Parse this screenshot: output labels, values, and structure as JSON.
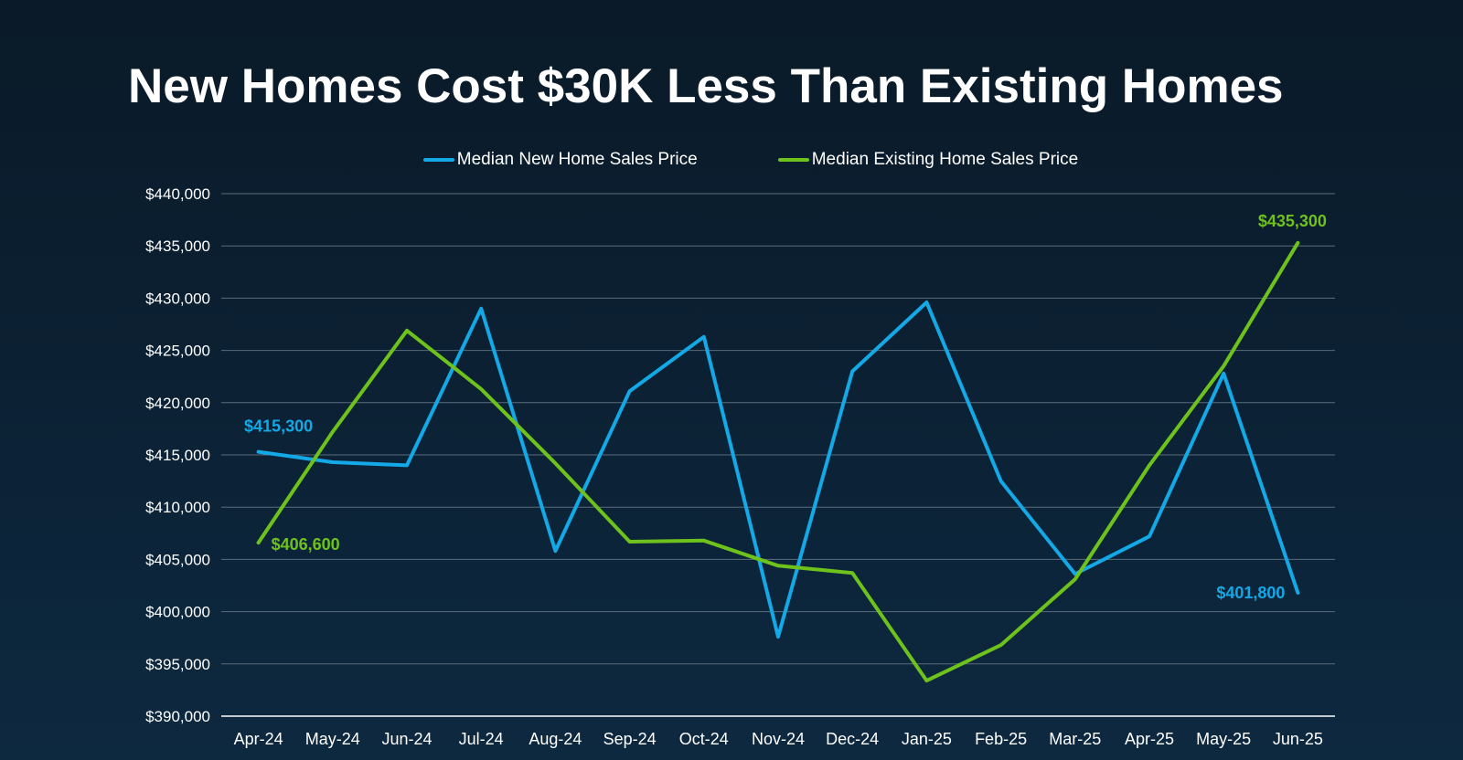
{
  "title": "New Homes Cost $30K Less Than Existing Homes",
  "colors": {
    "new_home": "#13a8e6",
    "existing_home": "#6ec21c",
    "grid": "#5a6c7c",
    "axis": "#ffffff"
  },
  "chart_data": {
    "type": "line",
    "title": "New Homes Cost $30K Less Than Existing Homes",
    "categories": [
      "Apr-24",
      "May-24",
      "Jun-24",
      "Jul-24",
      "Aug-24",
      "Sep-24",
      "Oct-24",
      "Nov-24",
      "Dec-24",
      "Jan-25",
      "Feb-25",
      "Mar-25",
      "Apr-25",
      "May-25",
      "Jun-25"
    ],
    "series": [
      {
        "name": "Median New Home Sales Price",
        "color": "#13a8e6",
        "values": [
          415300,
          414300,
          414000,
          429000,
          405800,
          421100,
          426300,
          397600,
          423000,
          429600,
          412500,
          403600,
          407200,
          422800,
          401800
        ]
      },
      {
        "name": "Median Existing Home Sales Price",
        "color": "#6ec21c",
        "values": [
          406600,
          417200,
          426900,
          421300,
          414200,
          406700,
          406800,
          404400,
          403700,
          393400,
          396800,
          403100,
          414000,
          423500,
          435300
        ]
      }
    ],
    "ylim": [
      390000,
      440000
    ],
    "yticks": [
      390000,
      395000,
      400000,
      405000,
      410000,
      415000,
      420000,
      425000,
      430000,
      435000,
      440000
    ],
    "ytick_labels": [
      "$390,000",
      "$395,000",
      "$400,000",
      "$405,000",
      "$410,000",
      "$415,000",
      "$420,000",
      "$425,000",
      "$430,000",
      "$435,000",
      "$440,000"
    ],
    "grid": true,
    "legend": "top-center",
    "data_labels": [
      {
        "series": 0,
        "index": 0,
        "text": "$415,300"
      },
      {
        "series": 1,
        "index": 0,
        "text": "$406,600"
      },
      {
        "series": 0,
        "index": 14,
        "text": "$401,800"
      },
      {
        "series": 1,
        "index": 14,
        "text": "$435,300"
      }
    ]
  }
}
